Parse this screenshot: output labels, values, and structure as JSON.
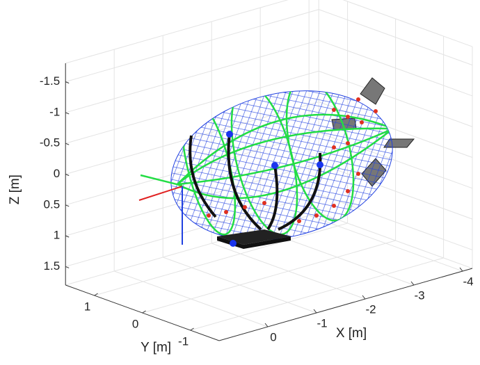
{
  "chart_data": {
    "type": "3d",
    "xlabel": "X [m]",
    "ylabel": "Y [m]",
    "zlabel": "Z [m]",
    "xlim": [
      1,
      -4.2
    ],
    "ylim": [
      -1.6,
      1.6
    ],
    "zlim": [
      -1.8,
      1.8
    ],
    "z_reversed": true,
    "xticks": [
      0,
      -1,
      -2,
      -3,
      -4
    ],
    "yticks": [
      1,
      0,
      -1
    ],
    "zticks": [
      -1.5,
      -1,
      -0.5,
      0,
      0.5,
      1,
      1.5
    ],
    "grid": true
  }
}
